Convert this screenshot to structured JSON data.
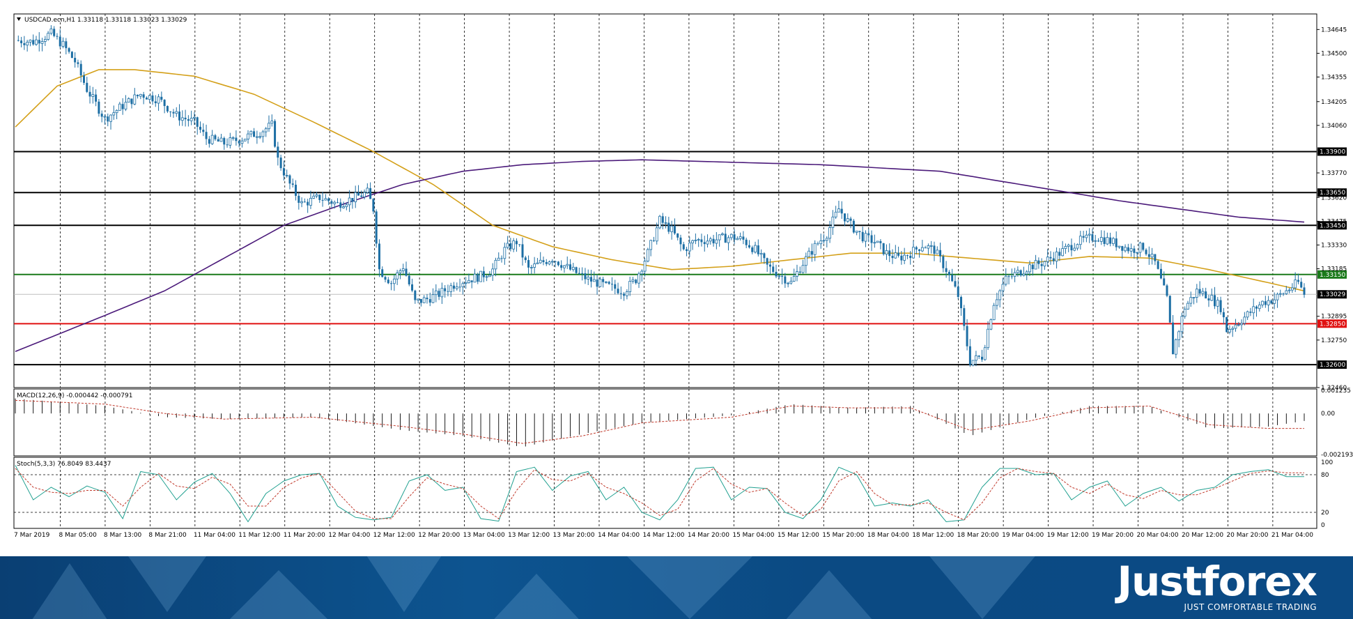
{
  "chart_data": {
    "type": "candlestick",
    "title": "USDCAD.ecn,H1  1.33118 1.33118 1.33023 1.33029",
    "symbol": "USDCAD.ecn,H1",
    "ohlc_last": {
      "open": 1.33118,
      "high": 1.33118,
      "low": 1.33023,
      "close": 1.33029
    },
    "price_axis": {
      "ylim": [
        1.3246,
        1.3474
      ],
      "ticks": [
        "1.34645",
        "1.34500",
        "1.34355",
        "1.34205",
        "1.34060",
        "1.33770",
        "1.33620",
        "1.33475",
        "1.33330",
        "1.33185",
        "1.32895",
        "1.32750",
        "1.32460"
      ]
    },
    "x_tick_labels": [
      "7 Mar 2019",
      "8 Mar 05:00",
      "8 Mar 13:00",
      "8 Mar 21:00",
      "11 Mar 04:00",
      "11 Mar 12:00",
      "11 Mar 20:00",
      "12 Mar 04:00",
      "12 Mar 12:00",
      "12 Mar 20:00",
      "13 Mar 04:00",
      "13 Mar 12:00",
      "13 Mar 20:00",
      "14 Mar 04:00",
      "14 Mar 12:00",
      "14 Mar 20:00",
      "15 Mar 04:00",
      "15 Mar 12:00",
      "15 Mar 20:00",
      "18 Mar 04:00",
      "18 Mar 12:00",
      "18 Mar 20:00",
      "19 Mar 04:00",
      "19 Mar 12:00",
      "19 Mar 20:00",
      "20 Mar 04:00",
      "20 Mar 12:00",
      "20 Mar 20:00",
      "21 Mar 04:00"
    ],
    "levels": [
      {
        "price": 1.339,
        "label": "1.33900",
        "color": "#000000"
      },
      {
        "price": 1.3365,
        "label": "1.33650",
        "color": "#000000"
      },
      {
        "price": 1.3345,
        "label": "1.33450",
        "color": "#000000"
      },
      {
        "price": 1.3315,
        "label": "1.33150",
        "color": "#1a7a1a"
      },
      {
        "price": 1.3285,
        "label": "1.32850",
        "color": "#e01010"
      },
      {
        "price": 1.326,
        "label": "1.32600",
        "color": "#000000"
      }
    ],
    "current_price": {
      "price": 1.33029,
      "label": "1.33029",
      "color": "#000000"
    },
    "close_path": [
      [
        0,
        1.3458
      ],
      [
        6,
        1.3457
      ],
      [
        12,
        1.3462
      ],
      [
        16,
        1.3455
      ],
      [
        20,
        1.3445
      ],
      [
        24,
        1.3428
      ],
      [
        30,
        1.341
      ],
      [
        36,
        1.3418
      ],
      [
        42,
        1.3425
      ],
      [
        48,
        1.3422
      ],
      [
        54,
        1.3412
      ],
      [
        60,
        1.3408
      ],
      [
        64,
        1.3398
      ],
      [
        70,
        1.3395
      ],
      [
        76,
        1.3398
      ],
      [
        82,
        1.3402
      ],
      [
        86,
        1.3406
      ],
      [
        88,
        1.3385
      ],
      [
        92,
        1.337
      ],
      [
        96,
        1.3358
      ],
      [
        102,
        1.3362
      ],
      [
        108,
        1.3358
      ],
      [
        114,
        1.3362
      ],
      [
        118,
        1.3365
      ],
      [
        120,
        1.3355
      ],
      [
        122,
        1.3318
      ],
      [
        126,
        1.331
      ],
      [
        130,
        1.332
      ],
      [
        134,
        1.3298
      ],
      [
        138,
        1.33
      ],
      [
        142,
        1.3303
      ],
      [
        148,
        1.331
      ],
      [
        152,
        1.3312
      ],
      [
        156,
        1.3314
      ],
      [
        160,
        1.3318
      ],
      [
        164,
        1.333
      ],
      [
        168,
        1.3335
      ],
      [
        172,
        1.3318
      ],
      [
        176,
        1.3322
      ],
      [
        180,
        1.3325
      ],
      [
        186,
        1.3318
      ],
      [
        192,
        1.3312
      ],
      [
        198,
        1.3308
      ],
      [
        204,
        1.3305
      ],
      [
        208,
        1.3312
      ],
      [
        212,
        1.3328
      ],
      [
        216,
        1.3348
      ],
      [
        220,
        1.3342
      ],
      [
        224,
        1.333
      ],
      [
        228,
        1.3336
      ],
      [
        234,
        1.3336
      ],
      [
        240,
        1.3338
      ],
      [
        244,
        1.3336
      ],
      [
        248,
        1.333
      ],
      [
        252,
        1.332
      ],
      [
        256,
        1.3315
      ],
      [
        260,
        1.331
      ],
      [
        264,
        1.3322
      ],
      [
        268,
        1.3332
      ],
      [
        272,
        1.334
      ],
      [
        276,
        1.3355
      ],
      [
        280,
        1.3345
      ],
      [
        284,
        1.3338
      ],
      [
        288,
        1.3335
      ],
      [
        292,
        1.3328
      ],
      [
        296,
        1.3325
      ],
      [
        300,
        1.3328
      ],
      [
        304,
        1.3333
      ],
      [
        308,
        1.333
      ],
      [
        312,
        1.3318
      ],
      [
        316,
        1.3302
      ],
      [
        320,
        1.3262
      ],
      [
        324,
        1.3265
      ],
      [
        328,
        1.3298
      ],
      [
        332,
        1.3312
      ],
      [
        336,
        1.3316
      ],
      [
        340,
        1.332
      ],
      [
        344,
        1.3322
      ],
      [
        350,
        1.3328
      ],
      [
        356,
        1.3335
      ],
      [
        362,
        1.3338
      ],
      [
        366,
        1.3336
      ],
      [
        370,
        1.3333
      ],
      [
        374,
        1.333
      ],
      [
        378,
        1.3332
      ],
      [
        382,
        1.3322
      ],
      [
        386,
        1.33
      ],
      [
        388,
        1.3268
      ],
      [
        392,
        1.3295
      ],
      [
        396,
        1.3305
      ],
      [
        400,
        1.3302
      ],
      [
        404,
        1.3295
      ],
      [
        406,
        1.3281
      ],
      [
        410,
        1.3286
      ],
      [
        414,
        1.3292
      ],
      [
        418,
        1.3298
      ],
      [
        422,
        1.33
      ],
      [
        426,
        1.3305
      ],
      [
        430,
        1.331
      ],
      [
        432,
        1.3303
      ]
    ],
    "series": [
      {
        "name": "",
        "color": "#d4a019",
        "type": "ma",
        "points": [
          [
            0,
            1.3405
          ],
          [
            14,
            1.343
          ],
          [
            28,
            1.344
          ],
          [
            40,
            1.344
          ],
          [
            60,
            1.3436
          ],
          [
            80,
            1.3425
          ],
          [
            100,
            1.3408
          ],
          [
            120,
            1.339
          ],
          [
            140,
            1.337
          ],
          [
            160,
            1.3345
          ],
          [
            180,
            1.3332
          ],
          [
            200,
            1.3324
          ],
          [
            220,
            1.3318
          ],
          [
            240,
            1.332
          ],
          [
            260,
            1.3324
          ],
          [
            280,
            1.3328
          ],
          [
            300,
            1.3328
          ],
          [
            320,
            1.3325
          ],
          [
            340,
            1.3322
          ],
          [
            360,
            1.3326
          ],
          [
            380,
            1.3325
          ],
          [
            400,
            1.3318
          ],
          [
            420,
            1.331
          ],
          [
            432,
            1.3305
          ]
        ]
      },
      {
        "name": "",
        "color": "#4b1a7a",
        "type": "ma",
        "points": [
          [
            0,
            1.3268
          ],
          [
            30,
            1.329
          ],
          [
            50,
            1.3305
          ],
          [
            70,
            1.3325
          ],
          [
            90,
            1.3345
          ],
          [
            110,
            1.3358
          ],
          [
            130,
            1.337
          ],
          [
            150,
            1.3378
          ],
          [
            170,
            1.3382
          ],
          [
            190,
            1.3384
          ],
          [
            210,
            1.3385
          ],
          [
            230,
            1.3384
          ],
          [
            250,
            1.3383
          ],
          [
            270,
            1.3382
          ],
          [
            290,
            1.338
          ],
          [
            310,
            1.3378
          ],
          [
            330,
            1.3372
          ],
          [
            350,
            1.3366
          ],
          [
            370,
            1.336
          ],
          [
            390,
            1.3355
          ],
          [
            410,
            1.335
          ],
          [
            432,
            1.3347
          ]
        ]
      }
    ],
    "macd": {
      "label": "MACD(12,26,9) -0.000442 -0.000791",
      "ylim": [
        -0.002193,
        0.001235
      ],
      "ticks": [
        "0.001235",
        "0.00",
        "-0.002193"
      ],
      "hist_path": [
        [
          0,
          0.0008
        ],
        [
          30,
          0.0004
        ],
        [
          50,
          -0.0002
        ],
        [
          70,
          -0.0003
        ],
        [
          100,
          -0.0002
        ],
        [
          130,
          -0.0009
        ],
        [
          150,
          -0.0012
        ],
        [
          170,
          -0.0018
        ],
        [
          190,
          -0.0011
        ],
        [
          210,
          -0.0005
        ],
        [
          240,
          -0.0001
        ],
        [
          260,
          0.0005
        ],
        [
          280,
          0.0003
        ],
        [
          300,
          0.0004
        ],
        [
          320,
          -0.0012
        ],
        [
          340,
          -0.0003
        ],
        [
          360,
          0.0004
        ],
        [
          380,
          0.0004
        ],
        [
          400,
          -0.0008
        ],
        [
          420,
          -0.0007
        ],
        [
          432,
          -0.0004
        ]
      ],
      "signal_path": [
        [
          0,
          0.0007
        ],
        [
          30,
          0.0005
        ],
        [
          50,
          0.0
        ],
        [
          70,
          -0.0003
        ],
        [
          100,
          -0.0002
        ],
        [
          130,
          -0.0007
        ],
        [
          150,
          -0.0011
        ],
        [
          170,
          -0.0016
        ],
        [
          190,
          -0.0012
        ],
        [
          210,
          -0.0005
        ],
        [
          240,
          -0.0002
        ],
        [
          260,
          0.0004
        ],
        [
          280,
          0.0003
        ],
        [
          300,
          0.0003
        ],
        [
          320,
          -0.0009
        ],
        [
          340,
          -0.0004
        ],
        [
          360,
          0.0003
        ],
        [
          380,
          0.0004
        ],
        [
          400,
          -0.0006
        ],
        [
          420,
          -0.0008
        ],
        [
          432,
          -0.0008
        ]
      ]
    },
    "stochastic": {
      "label": "Stoch(5,3,3) 76.8049 83.4437",
      "ylim": [
        0,
        100
      ],
      "ticks": [
        "100",
        "80",
        "20",
        "0"
      ],
      "k_path": [
        [
          0,
          95
        ],
        [
          6,
          40
        ],
        [
          12,
          60
        ],
        [
          18,
          45
        ],
        [
          24,
          62
        ],
        [
          30,
          52
        ],
        [
          36,
          10
        ],
        [
          42,
          85
        ],
        [
          48,
          80
        ],
        [
          54,
          40
        ],
        [
          60,
          68
        ],
        [
          66,
          82
        ],
        [
          72,
          50
        ],
        [
          78,
          5
        ],
        [
          84,
          50
        ],
        [
          90,
          70
        ],
        [
          96,
          80
        ],
        [
          102,
          82
        ],
        [
          108,
          30
        ],
        [
          114,
          12
        ],
        [
          120,
          8
        ],
        [
          126,
          12
        ],
        [
          132,
          70
        ],
        [
          138,
          80
        ],
        [
          144,
          55
        ],
        [
          150,
          60
        ],
        [
          156,
          10
        ],
        [
          162,
          6
        ],
        [
          168,
          85
        ],
        [
          174,
          92
        ],
        [
          180,
          55
        ],
        [
          186,
          78
        ],
        [
          192,
          85
        ],
        [
          198,
          40
        ],
        [
          204,
          60
        ],
        [
          210,
          20
        ],
        [
          216,
          8
        ],
        [
          222,
          40
        ],
        [
          228,
          90
        ],
        [
          234,
          92
        ],
        [
          240,
          40
        ],
        [
          246,
          60
        ],
        [
          252,
          58
        ],
        [
          258,
          20
        ],
        [
          264,
          10
        ],
        [
          270,
          40
        ],
        [
          276,
          92
        ],
        [
          282,
          80
        ],
        [
          288,
          30
        ],
        [
          294,
          35
        ],
        [
          300,
          30
        ],
        [
          306,
          40
        ],
        [
          312,
          5
        ],
        [
          318,
          8
        ],
        [
          324,
          60
        ],
        [
          330,
          90
        ],
        [
          336,
          90
        ],
        [
          342,
          80
        ],
        [
          348,
          82
        ],
        [
          354,
          40
        ],
        [
          360,
          60
        ],
        [
          366,
          70
        ],
        [
          372,
          30
        ],
        [
          378,
          50
        ],
        [
          384,
          60
        ],
        [
          390,
          38
        ],
        [
          396,
          55
        ],
        [
          402,
          60
        ],
        [
          408,
          80
        ],
        [
          414,
          85
        ],
        [
          420,
          88
        ],
        [
          426,
          77
        ]
      ],
      "d_path": [
        [
          0,
          90
        ],
        [
          6,
          60
        ],
        [
          12,
          52
        ],
        [
          18,
          50
        ],
        [
          24,
          55
        ],
        [
          30,
          55
        ],
        [
          36,
          30
        ],
        [
          42,
          60
        ],
        [
          48,
          82
        ],
        [
          54,
          62
        ],
        [
          60,
          58
        ],
        [
          66,
          76
        ],
        [
          72,
          65
        ],
        [
          78,
          30
        ],
        [
          84,
          30
        ],
        [
          90,
          60
        ],
        [
          96,
          75
        ],
        [
          102,
          82
        ],
        [
          108,
          52
        ],
        [
          114,
          22
        ],
        [
          120,
          10
        ],
        [
          126,
          10
        ],
        [
          132,
          45
        ],
        [
          138,
          75
        ],
        [
          144,
          65
        ],
        [
          150,
          58
        ],
        [
          156,
          30
        ],
        [
          162,
          10
        ],
        [
          168,
          55
        ],
        [
          174,
          88
        ],
        [
          180,
          72
        ],
        [
          186,
          70
        ],
        [
          192,
          82
        ],
        [
          198,
          60
        ],
        [
          204,
          50
        ],
        [
          210,
          35
        ],
        [
          216,
          15
        ],
        [
          222,
          25
        ],
        [
          228,
          70
        ],
        [
          234,
          90
        ],
        [
          240,
          65
        ],
        [
          246,
          52
        ],
        [
          252,
          58
        ],
        [
          258,
          35
        ],
        [
          264,
          15
        ],
        [
          270,
          25
        ],
        [
          276,
          70
        ],
        [
          282,
          85
        ],
        [
          288,
          50
        ],
        [
          294,
          32
        ],
        [
          300,
          32
        ],
        [
          306,
          35
        ],
        [
          312,
          20
        ],
        [
          318,
          8
        ],
        [
          324,
          35
        ],
        [
          330,
          75
        ],
        [
          336,
          90
        ],
        [
          342,
          85
        ],
        [
          348,
          82
        ],
        [
          354,
          60
        ],
        [
          360,
          50
        ],
        [
          366,
          65
        ],
        [
          372,
          48
        ],
        [
          378,
          42
        ],
        [
          384,
          55
        ],
        [
          390,
          48
        ],
        [
          396,
          48
        ],
        [
          402,
          58
        ],
        [
          408,
          70
        ],
        [
          414,
          82
        ],
        [
          420,
          86
        ],
        [
          426,
          83
        ]
      ]
    }
  },
  "branding": {
    "logo": "Justforex",
    "tagline": "JUST COMFORTABLE TRADING"
  }
}
